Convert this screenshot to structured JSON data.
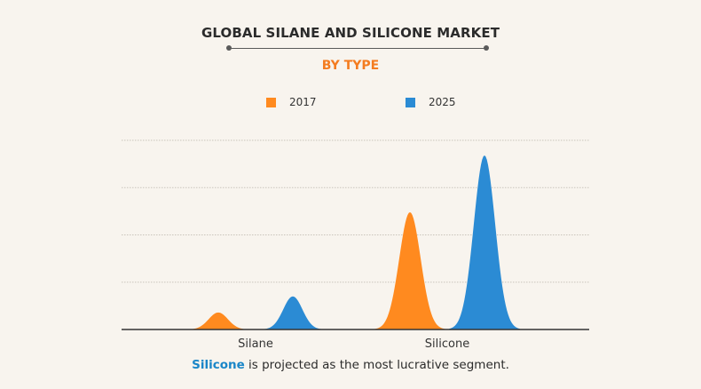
{
  "header": {
    "title": "GLOBAL SILANE AND SILICONE MARKET",
    "subtitle": "BY TYPE"
  },
  "colors": {
    "accent": "#f47c20",
    "series_2017": "#ff8a1f",
    "series_2025": "#2b8bd4",
    "highlight": "#1a86c8",
    "background": "#f8f4ee"
  },
  "footer": {
    "highlight": "Silicone",
    "rest": " is projected as the most lucrative segment."
  },
  "chart_data": {
    "type": "area",
    "categories": [
      "Silane",
      "Silicone"
    ],
    "series": [
      {
        "name": "2017",
        "values": [
          0.18,
          1.24
        ],
        "color": "#ff8a1f"
      },
      {
        "name": "2025",
        "values": [
          0.35,
          1.84
        ],
        "color": "#2b8bd4"
      }
    ],
    "ylim": [
      0,
      2
    ],
    "grid": true,
    "legend_position": "top",
    "legend": [
      "2017",
      "2025"
    ]
  }
}
